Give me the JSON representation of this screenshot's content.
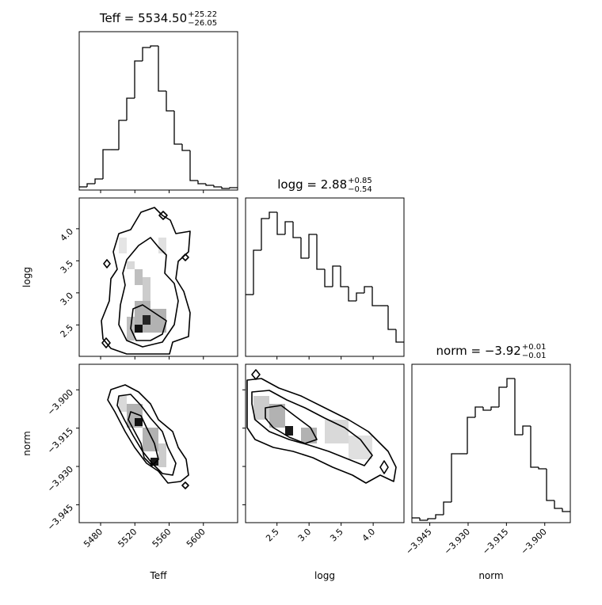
{
  "chart_data": [
    {
      "type": "histogram",
      "title": "Teff = 5534.50",
      "title_upper": "+25.22",
      "title_lower": "−26.05",
      "bins": [
        5455,
        5464.25,
        5473.5,
        5482.75,
        5492,
        5501.25,
        5510.5,
        5519.75,
        5529,
        5538.25,
        5547.5,
        5556.75,
        5566,
        5575.25,
        5584.5,
        5593.75,
        5603,
        5612.25,
        5621.5,
        5630.75,
        5640
      ],
      "counts": [
        4,
        8,
        14,
        51,
        51,
        88,
        116,
        163,
        180,
        182,
        125,
        100,
        58,
        50,
        12,
        8,
        6,
        4,
        2,
        3
      ],
      "xlim": [
        5455,
        5640
      ],
      "ylim": [
        0,
        200
      ],
      "xticks": [
        5480,
        5520,
        5560,
        5600
      ],
      "color": "#000000"
    },
    {
      "type": "contour",
      "xlim": [
        5455,
        5640
      ],
      "ylim": [
        2.01,
        4.48
      ],
      "xticks": [
        5480,
        5520,
        5560,
        5600
      ],
      "yticks": [
        2.5,
        {
          "value": 3,
          "label": "3.0"
        },
        3.5,
        {
          "value": 4,
          "label": "4.0"
        }
      ],
      "ylabel": "logg"
    },
    {
      "type": "histogram",
      "title": "logg = 2.88",
      "title_upper": "+0.85",
      "title_lower": "−0.54",
      "bins": [
        2.01,
        2.1335,
        2.257,
        2.3805,
        2.504,
        2.6275,
        2.751,
        2.8745,
        2.998,
        3.1215,
        3.245,
        3.3685,
        3.492,
        3.6155,
        3.739,
        3.8625,
        3.986,
        4.1095,
        4.233,
        4.3565,
        4.48
      ],
      "counts": [
        78,
        134,
        174,
        182,
        154,
        170,
        150,
        124,
        154,
        110,
        88,
        114,
        88,
        70,
        80,
        88,
        64,
        64,
        34,
        18
      ],
      "xlim": [
        2.01,
        4.48
      ],
      "ylim": [
        0,
        200
      ],
      "xticks": [
        2.5,
        3,
        3.5,
        4
      ],
      "color": "#000000"
    },
    {
      "type": "contour",
      "xlim": [
        5455,
        5640
      ],
      "ylim": [
        -3.952,
        -3.89
      ],
      "xticks": [
        5480,
        5520,
        5560,
        5600
      ],
      "yticks": [
        {
          "value": -3.945,
          "label": "−3.945"
        },
        {
          "value": -3.93,
          "label": "−3.930"
        },
        {
          "value": -3.915,
          "label": "−3.915"
        },
        {
          "value": -3.9,
          "label": "−3.900"
        }
      ],
      "xlabel": "Teff",
      "ylabel": "norm"
    },
    {
      "type": "contour",
      "xlim": [
        2.01,
        4.48
      ],
      "ylim": [
        -3.952,
        -3.89
      ],
      "xticks": [
        2.5,
        {
          "value": 3,
          "label": "3.0"
        },
        3.5,
        {
          "value": 4,
          "label": "4.0"
        }
      ],
      "yticks": [
        -3.945,
        -3.93,
        -3.915,
        -3.9
      ],
      "xlabel": "logg"
    },
    {
      "type": "histogram",
      "title": "norm = −3.92",
      "title_upper": "+0.01",
      "title_lower": "−0.01",
      "bins": [
        -3.952,
        -3.9489,
        -3.9458,
        -3.9427,
        -3.9396,
        -3.9365,
        -3.9334,
        -3.9303,
        -3.9272,
        -3.9241,
        -3.921,
        -3.9179,
        -3.9148,
        -3.9117,
        -3.9086,
        -3.9055,
        -3.9024,
        -3.8993,
        -3.8962,
        -3.8931,
        -3.89
      ],
      "counts": [
        6,
        3,
        5,
        10,
        26,
        87,
        87,
        133,
        146,
        142,
        146,
        171,
        182,
        111,
        122,
        70,
        68,
        28,
        18,
        14
      ],
      "xlim": [
        -3.952,
        -3.89
      ],
      "ylim": [
        0,
        200
      ],
      "xticks": [
        {
          "value": -3.945,
          "label": "−3.945"
        },
        {
          "value": -3.93,
          "label": "−3.930"
        },
        {
          "value": -3.915,
          "label": "−3.915"
        },
        {
          "value": -3.9,
          "label": "−3.900"
        }
      ],
      "xlabel": "norm",
      "color": "#000000"
    }
  ]
}
